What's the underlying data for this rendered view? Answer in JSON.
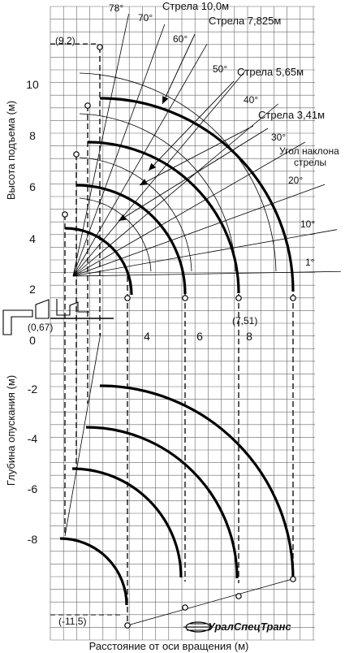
{
  "chart_data": {
    "type": "diagram",
    "xlabel": "Расстояние от оси вращения (м)",
    "ylabel_top": "Высота подъема (м)",
    "ylabel_bottom": "Глубина опускания (м)",
    "x_ticks": [
      "4",
      "6",
      "8"
    ],
    "y_ticks": [
      "10",
      "8",
      "6",
      "4",
      "2",
      "0",
      "-2",
      "-4",
      "-6",
      "-8"
    ],
    "booms": [
      {
        "label": "Стрела 10,0м",
        "length_m": 10.0
      },
      {
        "label": "Стрела 7,825м",
        "length_m": 7.825
      },
      {
        "label": "Стрела 5,65м",
        "length_m": 5.65
      },
      {
        "label": "Стрела 3,41м",
        "length_m": 3.41
      }
    ],
    "angles_deg": [
      78,
      70,
      60,
      50,
      40,
      30,
      20,
      10,
      1
    ],
    "angle_caption": [
      "Угол наклона",
      "стрелы"
    ],
    "points": [
      {
        "label": "(9,2)",
        "x": 0.33,
        "y": 9.2
      },
      {
        "label": "(0,67)",
        "x": 0.0,
        "y": 0.67
      },
      {
        "label": "(7,51)",
        "x": 7.51,
        "y": 0.0
      },
      {
        "label": "(-11,5)",
        "x": 0.0,
        "y": -11.5
      }
    ]
  },
  "brand": {
    "name": "УралСпецТранс",
    "accent_color": "#000000"
  }
}
